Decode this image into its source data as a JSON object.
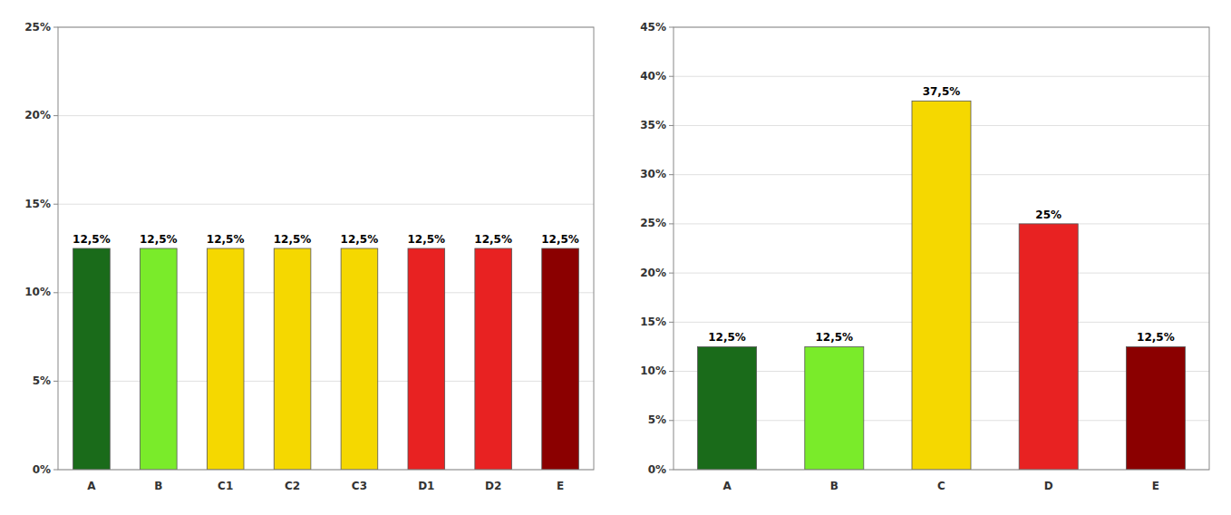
{
  "chart_data": [
    {
      "type": "bar",
      "categories": [
        "A",
        "B",
        "C1",
        "C2",
        "C3",
        "D1",
        "D2",
        "E"
      ],
      "values": [
        0.125,
        0.125,
        0.125,
        0.125,
        0.125,
        0.125,
        0.125,
        0.125
      ],
      "value_labels": [
        "12,5%",
        "12,5%",
        "12,5%",
        "12,5%",
        "12,5%",
        "12,5%",
        "12,5%",
        "12,5%"
      ],
      "colors": [
        "#1a6b1a",
        "#7aeb2a",
        "#f5d800",
        "#f5d800",
        "#f5d800",
        "#e82222",
        "#e82222",
        "#8b0000"
      ],
      "ylim": [
        0,
        0.25
      ],
      "yticks": [
        {
          "value": 0,
          "label": "0%"
        },
        {
          "value": 0.05,
          "label": "5%"
        },
        {
          "value": 0.1,
          "label": "10%"
        },
        {
          "value": 0.15,
          "label": "15%"
        },
        {
          "value": 0.2,
          "label": "20%"
        },
        {
          "value": 0.25,
          "label": "25%"
        }
      ],
      "grid": true,
      "data_labels": true
    },
    {
      "type": "bar",
      "categories": [
        "A",
        "B",
        "C",
        "D",
        "E"
      ],
      "values": [
        0.125,
        0.125,
        0.375,
        0.25,
        0.125
      ],
      "value_labels": [
        "12,5%",
        "12,5%",
        "37,5%",
        "25%",
        "12,5%"
      ],
      "colors": [
        "#1a6b1a",
        "#7aeb2a",
        "#f5d800",
        "#e82222",
        "#8b0000"
      ],
      "ylim": [
        0,
        0.45
      ],
      "yticks": [
        {
          "value": 0,
          "label": "0%"
        },
        {
          "value": 0.05,
          "label": "5%"
        },
        {
          "value": 0.1,
          "label": "10%"
        },
        {
          "value": 0.15,
          "label": "15%"
        },
        {
          "value": 0.2,
          "label": "20%"
        },
        {
          "value": 0.25,
          "label": "25%"
        },
        {
          "value": 0.3,
          "label": "30%"
        },
        {
          "value": 0.35,
          "label": "35%"
        },
        {
          "value": 0.4,
          "label": "40%"
        },
        {
          "value": 0.45,
          "label": "45%"
        }
      ],
      "grid": true,
      "data_labels": true
    }
  ]
}
